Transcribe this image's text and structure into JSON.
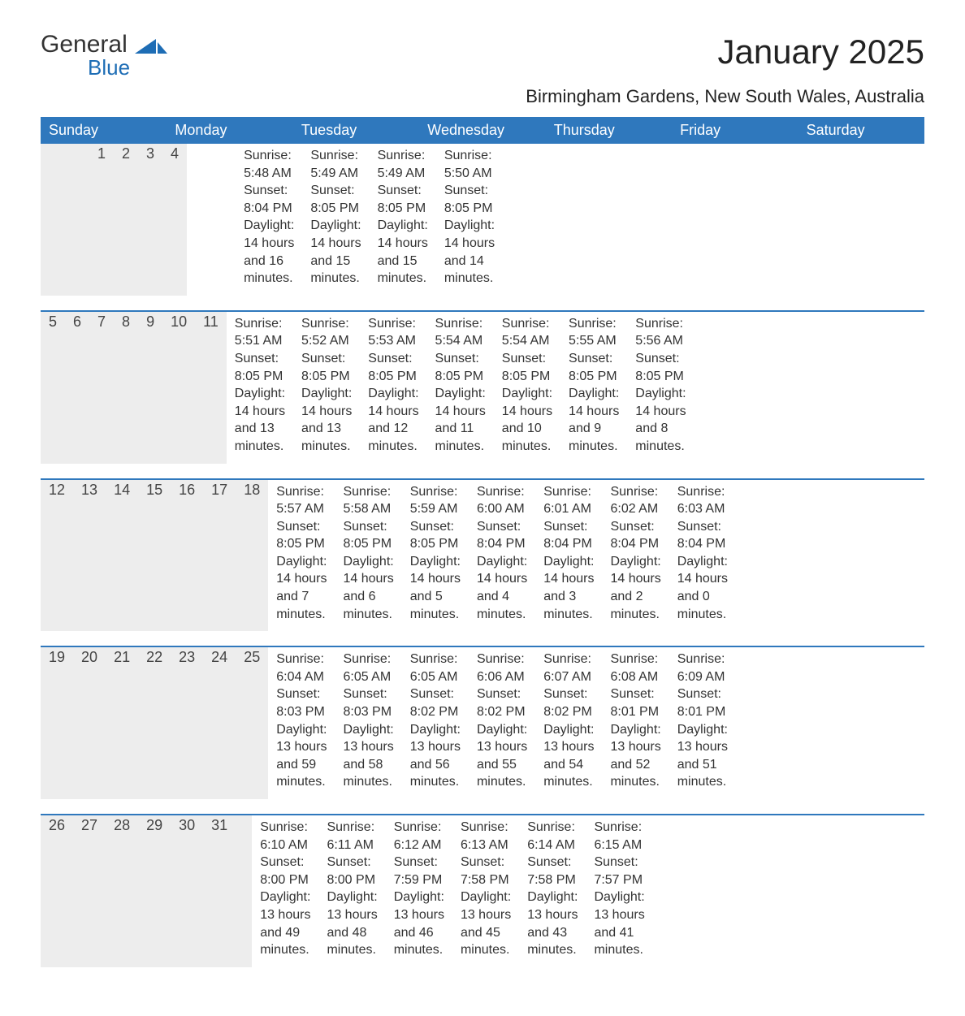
{
  "brand": {
    "name_top": "General",
    "name_bottom": "Blue",
    "mark_color": "#1e6db5",
    "text_color": "#333333"
  },
  "title": "January 2025",
  "location": "Birmingham Gardens, New South Wales, Australia",
  "colors": {
    "header_bg": "#2f78bd",
    "header_text": "#ffffff",
    "daynum_bg": "#ededed",
    "week_border": "#2f78bd",
    "body_text": "#333333",
    "page_bg": "#ffffff"
  },
  "typography": {
    "title_fontsize": 42,
    "location_fontsize": 22,
    "weekday_fontsize": 18,
    "daynum_fontsize": 18,
    "details_fontsize": 16,
    "font_family": "Arial"
  },
  "weekdays": [
    "Sunday",
    "Monday",
    "Tuesday",
    "Wednesday",
    "Thursday",
    "Friday",
    "Saturday"
  ],
  "labels": {
    "sunrise": "Sunrise",
    "sunset": "Sunset",
    "daylight": "Daylight"
  },
  "weeks": [
    [
      null,
      null,
      null,
      {
        "day": 1,
        "sunrise": "5:48 AM",
        "sunset": "8:04 PM",
        "daylight": "14 hours and 16 minutes."
      },
      {
        "day": 2,
        "sunrise": "5:49 AM",
        "sunset": "8:05 PM",
        "daylight": "14 hours and 15 minutes."
      },
      {
        "day": 3,
        "sunrise": "5:49 AM",
        "sunset": "8:05 PM",
        "daylight": "14 hours and 15 minutes."
      },
      {
        "day": 4,
        "sunrise": "5:50 AM",
        "sunset": "8:05 PM",
        "daylight": "14 hours and 14 minutes."
      }
    ],
    [
      {
        "day": 5,
        "sunrise": "5:51 AM",
        "sunset": "8:05 PM",
        "daylight": "14 hours and 13 minutes."
      },
      {
        "day": 6,
        "sunrise": "5:52 AM",
        "sunset": "8:05 PM",
        "daylight": "14 hours and 13 minutes."
      },
      {
        "day": 7,
        "sunrise": "5:53 AM",
        "sunset": "8:05 PM",
        "daylight": "14 hours and 12 minutes."
      },
      {
        "day": 8,
        "sunrise": "5:54 AM",
        "sunset": "8:05 PM",
        "daylight": "14 hours and 11 minutes."
      },
      {
        "day": 9,
        "sunrise": "5:54 AM",
        "sunset": "8:05 PM",
        "daylight": "14 hours and 10 minutes."
      },
      {
        "day": 10,
        "sunrise": "5:55 AM",
        "sunset": "8:05 PM",
        "daylight": "14 hours and 9 minutes."
      },
      {
        "day": 11,
        "sunrise": "5:56 AM",
        "sunset": "8:05 PM",
        "daylight": "14 hours and 8 minutes."
      }
    ],
    [
      {
        "day": 12,
        "sunrise": "5:57 AM",
        "sunset": "8:05 PM",
        "daylight": "14 hours and 7 minutes."
      },
      {
        "day": 13,
        "sunrise": "5:58 AM",
        "sunset": "8:05 PM",
        "daylight": "14 hours and 6 minutes."
      },
      {
        "day": 14,
        "sunrise": "5:59 AM",
        "sunset": "8:05 PM",
        "daylight": "14 hours and 5 minutes."
      },
      {
        "day": 15,
        "sunrise": "6:00 AM",
        "sunset": "8:04 PM",
        "daylight": "14 hours and 4 minutes."
      },
      {
        "day": 16,
        "sunrise": "6:01 AM",
        "sunset": "8:04 PM",
        "daylight": "14 hours and 3 minutes."
      },
      {
        "day": 17,
        "sunrise": "6:02 AM",
        "sunset": "8:04 PM",
        "daylight": "14 hours and 2 minutes."
      },
      {
        "day": 18,
        "sunrise": "6:03 AM",
        "sunset": "8:04 PM",
        "daylight": "14 hours and 0 minutes."
      }
    ],
    [
      {
        "day": 19,
        "sunrise": "6:04 AM",
        "sunset": "8:03 PM",
        "daylight": "13 hours and 59 minutes."
      },
      {
        "day": 20,
        "sunrise": "6:05 AM",
        "sunset": "8:03 PM",
        "daylight": "13 hours and 58 minutes."
      },
      {
        "day": 21,
        "sunrise": "6:05 AM",
        "sunset": "8:02 PM",
        "daylight": "13 hours and 56 minutes."
      },
      {
        "day": 22,
        "sunrise": "6:06 AM",
        "sunset": "8:02 PM",
        "daylight": "13 hours and 55 minutes."
      },
      {
        "day": 23,
        "sunrise": "6:07 AM",
        "sunset": "8:02 PM",
        "daylight": "13 hours and 54 minutes."
      },
      {
        "day": 24,
        "sunrise": "6:08 AM",
        "sunset": "8:01 PM",
        "daylight": "13 hours and 52 minutes."
      },
      {
        "day": 25,
        "sunrise": "6:09 AM",
        "sunset": "8:01 PM",
        "daylight": "13 hours and 51 minutes."
      }
    ],
    [
      {
        "day": 26,
        "sunrise": "6:10 AM",
        "sunset": "8:00 PM",
        "daylight": "13 hours and 49 minutes."
      },
      {
        "day": 27,
        "sunrise": "6:11 AM",
        "sunset": "8:00 PM",
        "daylight": "13 hours and 48 minutes."
      },
      {
        "day": 28,
        "sunrise": "6:12 AM",
        "sunset": "7:59 PM",
        "daylight": "13 hours and 46 minutes."
      },
      {
        "day": 29,
        "sunrise": "6:13 AM",
        "sunset": "7:58 PM",
        "daylight": "13 hours and 45 minutes."
      },
      {
        "day": 30,
        "sunrise": "6:14 AM",
        "sunset": "7:58 PM",
        "daylight": "13 hours and 43 minutes."
      },
      {
        "day": 31,
        "sunrise": "6:15 AM",
        "sunset": "7:57 PM",
        "daylight": "13 hours and 41 minutes."
      },
      null
    ]
  ]
}
